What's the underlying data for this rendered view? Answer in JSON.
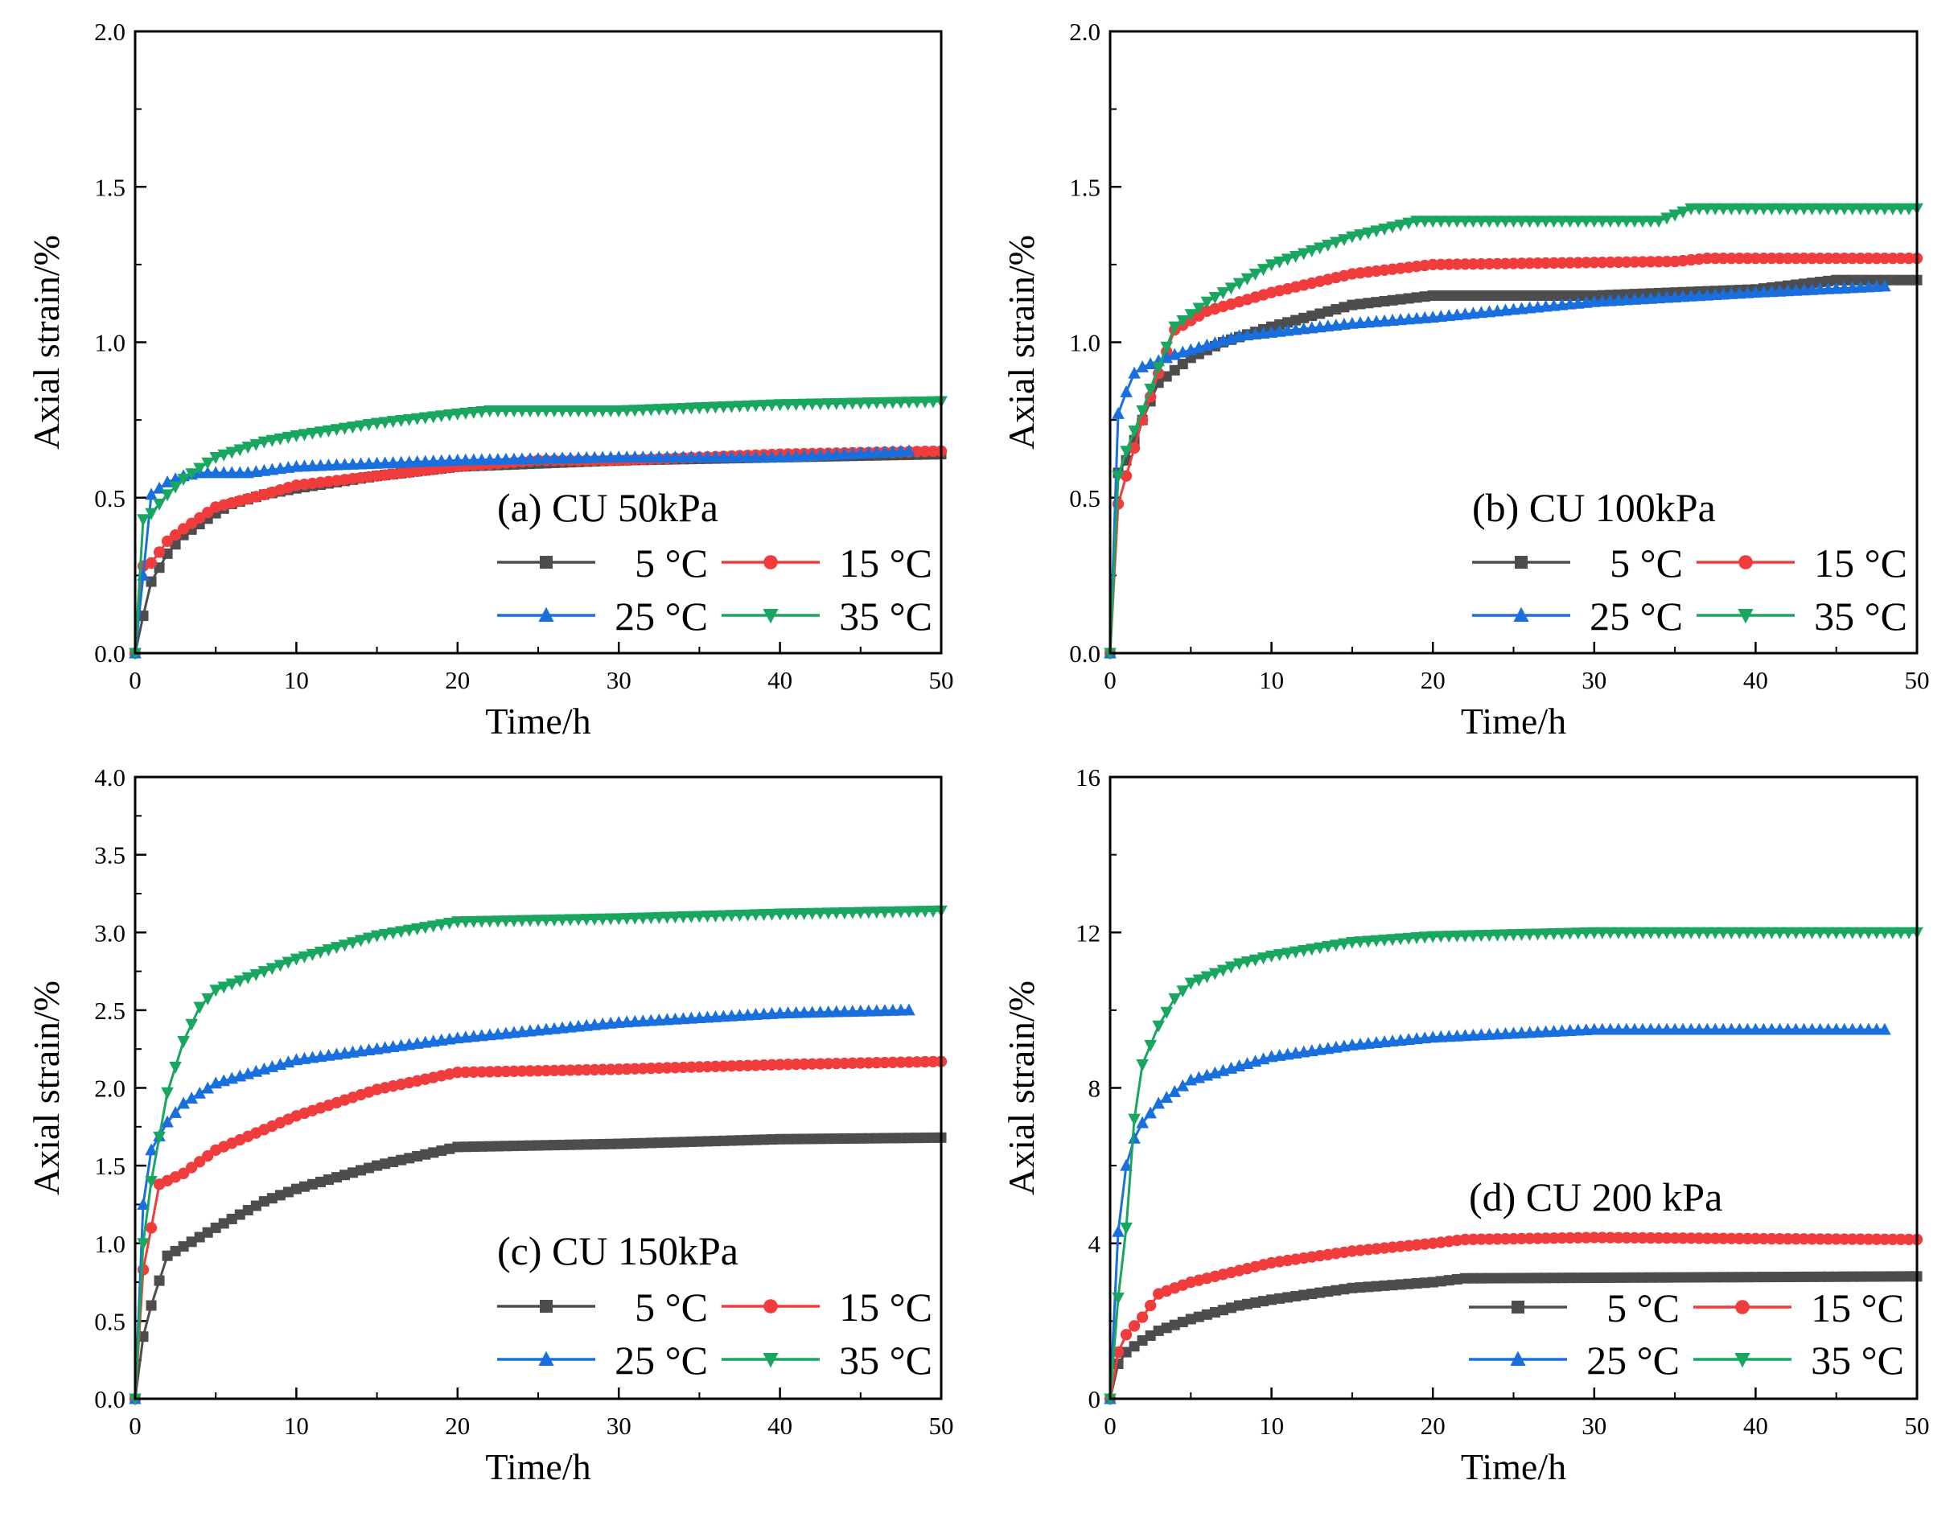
{
  "chart_data": [
    {
      "type": "line",
      "title": "(a) CU 50kPa",
      "xlabel": "Time/h",
      "ylabel": "Axial strain/%",
      "xlim": [
        0,
        50
      ],
      "ylim": [
        0,
        2.0
      ],
      "xticks": [
        "0",
        "10",
        "20",
        "30",
        "40",
        "50"
      ],
      "yticks": [
        "0.0",
        "0.5",
        "1.0",
        "1.5",
        "2.0"
      ],
      "legend_placement": "bottom-right",
      "series": [
        {
          "name": "5 °C",
          "color": "#4d4d4d",
          "marker": "square",
          "x": [
            0,
            0.5,
            1,
            2,
            3,
            5,
            6,
            8,
            10,
            15,
            20,
            30,
            40,
            50
          ],
          "y": [
            0,
            0.12,
            0.23,
            0.32,
            0.38,
            0.45,
            0.48,
            0.51,
            0.53,
            0.57,
            0.6,
            0.62,
            0.63,
            0.64
          ]
        },
        {
          "name": "15 °C",
          "color": "#f03c3c",
          "marker": "circle",
          "x": [
            0,
            0.5,
            1,
            2,
            3,
            5,
            8,
            10,
            15,
            20,
            25,
            30,
            40,
            50
          ],
          "y": [
            0,
            0.28,
            0.29,
            0.36,
            0.4,
            0.47,
            0.51,
            0.54,
            0.57,
            0.6,
            0.62,
            0.62,
            0.64,
            0.65
          ]
        },
        {
          "name": "25 °C",
          "color": "#1a6fdf",
          "marker": "triangle-up",
          "x": [
            0,
            0.5,
            1,
            2,
            3,
            4,
            7,
            10,
            20,
            30,
            40,
            48
          ],
          "y": [
            0,
            0.25,
            0.51,
            0.55,
            0.57,
            0.58,
            0.58,
            0.6,
            0.62,
            0.63,
            0.63,
            0.65
          ]
        },
        {
          "name": "35 °C",
          "color": "#18a661",
          "marker": "triangle-down",
          "x": [
            0,
            0.5,
            1,
            2,
            3,
            5,
            8,
            10,
            15,
            20,
            22,
            30,
            40,
            50
          ],
          "y": [
            0,
            0.43,
            0.45,
            0.51,
            0.56,
            0.63,
            0.68,
            0.7,
            0.74,
            0.77,
            0.78,
            0.78,
            0.8,
            0.81
          ]
        }
      ]
    },
    {
      "type": "line",
      "title": "(b) CU 100kPa",
      "xlabel": "Time/h",
      "ylabel": "Axial strain/%",
      "xlim": [
        0,
        50
      ],
      "ylim": [
        0,
        2.0
      ],
      "xticks": [
        "0",
        "10",
        "20",
        "30",
        "40",
        "50"
      ],
      "yticks": [
        "0.0",
        "0.5",
        "1.0",
        "1.5",
        "2.0"
      ],
      "legend_placement": "bottom-right",
      "series": [
        {
          "name": "5 °C",
          "color": "#4d4d4d",
          "marker": "square",
          "x": [
            0,
            0.5,
            1,
            2,
            3,
            5,
            7,
            10,
            15,
            20,
            30,
            40,
            45,
            50
          ],
          "y": [
            0,
            0.58,
            0.62,
            0.75,
            0.87,
            0.95,
            1.0,
            1.05,
            1.12,
            1.15,
            1.15,
            1.17,
            1.2,
            1.2
          ]
        },
        {
          "name": "15 °C",
          "color": "#f03c3c",
          "marker": "circle",
          "x": [
            0,
            0.5,
            1,
            2,
            3,
            4,
            6,
            10,
            15,
            20,
            35,
            37,
            50
          ],
          "y": [
            0,
            0.48,
            0.57,
            0.75,
            0.9,
            1.04,
            1.1,
            1.16,
            1.22,
            1.25,
            1.26,
            1.27,
            1.27
          ]
        },
        {
          "name": "25 °C",
          "color": "#1a6fdf",
          "marker": "triangle-up",
          "x": [
            0,
            0.5,
            1,
            1.5,
            2,
            4,
            8,
            15,
            20,
            30,
            40,
            48
          ],
          "y": [
            0,
            0.77,
            0.84,
            0.9,
            0.92,
            0.96,
            1.02,
            1.06,
            1.08,
            1.13,
            1.16,
            1.18
          ]
        },
        {
          "name": "35 °C",
          "color": "#18a661",
          "marker": "triangle-down",
          "x": [
            0,
            0.5,
            1,
            2,
            3,
            4,
            6,
            10,
            15,
            19,
            34,
            36,
            50
          ],
          "y": [
            0,
            0.57,
            0.65,
            0.78,
            0.92,
            1.05,
            1.13,
            1.25,
            1.34,
            1.39,
            1.39,
            1.43,
            1.43
          ]
        }
      ]
    },
    {
      "type": "line",
      "title": "(c) CU 150kPa",
      "xlabel": "Time/h",
      "ylabel": "Axial strain/%",
      "xlim": [
        0,
        50
      ],
      "ylim": [
        0,
        4.0
      ],
      "xticks": [
        "0",
        "10",
        "20",
        "30",
        "40",
        "50"
      ],
      "yticks": [
        "0.0",
        "0.5",
        "1.0",
        "1.5",
        "2.0",
        "2.5",
        "3.0",
        "3.5",
        "4.0"
      ],
      "legend_placement": "bottom-right",
      "series": [
        {
          "name": "5 °C",
          "color": "#4d4d4d",
          "marker": "square",
          "x": [
            0,
            0.5,
            1,
            2,
            3,
            5,
            8,
            10,
            15,
            20,
            30,
            40,
            50
          ],
          "y": [
            0,
            0.4,
            0.6,
            0.92,
            0.98,
            1.1,
            1.27,
            1.35,
            1.5,
            1.62,
            1.64,
            1.67,
            1.68
          ]
        },
        {
          "name": "15 °C",
          "color": "#f03c3c",
          "marker": "circle",
          "x": [
            0,
            0.5,
            1,
            1.5,
            3,
            5,
            10,
            15,
            20,
            30,
            40,
            50
          ],
          "y": [
            0,
            0.83,
            1.1,
            1.38,
            1.45,
            1.6,
            1.82,
            1.99,
            2.1,
            2.12,
            2.15,
            2.17
          ]
        },
        {
          "name": "25 °C",
          "color": "#1a6fdf",
          "marker": "triangle-up",
          "x": [
            0,
            0.5,
            1,
            2,
            3,
            5,
            10,
            15,
            20,
            30,
            40,
            48
          ],
          "y": [
            0,
            1.25,
            1.6,
            1.78,
            1.9,
            2.03,
            2.18,
            2.25,
            2.32,
            2.42,
            2.48,
            2.5
          ]
        },
        {
          "name": "35 °C",
          "color": "#18a661",
          "marker": "triangle-down",
          "x": [
            0,
            0.5,
            1,
            2,
            3,
            4,
            5,
            8,
            10,
            15,
            20,
            30,
            40,
            50
          ],
          "y": [
            0,
            1.0,
            1.4,
            1.97,
            2.3,
            2.52,
            2.63,
            2.75,
            2.83,
            2.98,
            3.07,
            3.09,
            3.12,
            3.14
          ]
        }
      ]
    },
    {
      "type": "line",
      "title": "(d) CU 200 kPa",
      "xlabel": "Time/h",
      "ylabel": "Axial strain/%",
      "xlim": [
        0,
        50
      ],
      "ylim": [
        0,
        16
      ],
      "xticks": [
        "0",
        "10",
        "20",
        "30",
        "40",
        "50"
      ],
      "yticks": [
        "0",
        "4",
        "8",
        "12",
        "16"
      ],
      "legend_placement": "bottom-right",
      "series": [
        {
          "name": "5 °C",
          "color": "#4d4d4d",
          "marker": "square",
          "x": [
            0,
            0.5,
            1,
            2,
            3,
            5,
            8,
            10,
            15,
            20,
            22,
            50
          ],
          "y": [
            0,
            0.9,
            1.2,
            1.5,
            1.75,
            2.05,
            2.4,
            2.55,
            2.85,
            3.0,
            3.1,
            3.15
          ]
        },
        {
          "name": "15 °C",
          "color": "#f03c3c",
          "marker": "circle",
          "x": [
            0,
            0.5,
            1,
            2,
            3,
            5,
            10,
            15,
            20,
            22,
            30,
            40,
            50
          ],
          "y": [
            0,
            1.2,
            1.65,
            2.1,
            2.7,
            3.0,
            3.5,
            3.8,
            4.0,
            4.1,
            4.15,
            4.12,
            4.1
          ]
        },
        {
          "name": "25 °C",
          "color": "#1a6fdf",
          "marker": "triangle-up",
          "x": [
            0,
            0.5,
            1,
            1.5,
            2,
            3,
            5,
            10,
            15,
            20,
            30,
            48
          ],
          "y": [
            0,
            4.3,
            6.0,
            6.7,
            7.1,
            7.6,
            8.2,
            8.8,
            9.1,
            9.3,
            9.5,
            9.5
          ]
        },
        {
          "name": "35 °C",
          "color": "#18a661",
          "marker": "triangle-down",
          "x": [
            0,
            0.5,
            1,
            1.5,
            2,
            3,
            4,
            5,
            8,
            10,
            15,
            20,
            30,
            50
          ],
          "y": [
            0,
            2.6,
            4.4,
            7.2,
            8.6,
            9.6,
            10.3,
            10.7,
            11.2,
            11.4,
            11.75,
            11.9,
            12.0,
            12.0
          ]
        }
      ]
    }
  ]
}
